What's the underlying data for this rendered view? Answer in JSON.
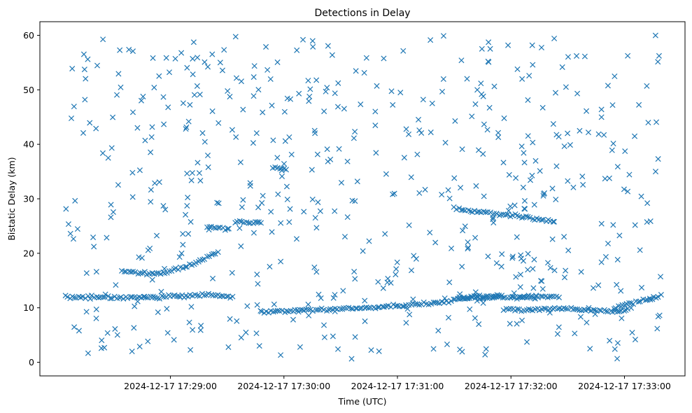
{
  "chart_data": {
    "type": "scatter",
    "title": "Detections in Delay",
    "xlabel": "Time (UTC)",
    "ylabel": "Bistatic Delay (km)",
    "xlim": [
      "2024-12-17 17:27:51",
      "2024-12-17 17:33:32"
    ],
    "ylim": [
      -2.5,
      62.5
    ],
    "x_ticks": [
      "2024-12-17 17:29:00",
      "2024-12-17 17:30:00",
      "2024-12-17 17:31:00",
      "2024-12-17 17:32:00",
      "2024-12-17 17:33:00"
    ],
    "y_ticks": [
      0,
      10,
      20,
      30,
      40,
      50,
      60
    ],
    "marker": "x",
    "color": "#1f77b4",
    "grid": false,
    "legend": "none",
    "start_time": "2024-12-17 17:28:04",
    "end_time": "2024-12-17 17:33:20",
    "tracks": [
      {
        "segments": [
          [
            0,
            12.0
          ],
          [
            30,
            11.8
          ],
          [
            55,
            12.1
          ],
          [
            78,
            12.4
          ],
          [
            90,
            12.0
          ]
        ]
      },
      {
        "segments": [
          [
            30,
            17.0
          ],
          [
            40,
            16.4
          ],
          [
            47,
            16.3
          ]
        ]
      },
      {
        "segments": [
          [
            47,
            16.2
          ],
          [
            65,
            17.6
          ],
          [
            75,
            19.2
          ],
          [
            82,
            20.3
          ]
        ]
      },
      {
        "segments": [
          [
            75,
            24.8
          ],
          [
            88,
            24.5
          ]
        ]
      },
      {
        "segments": [
          [
            90,
            25.8
          ],
          [
            105,
            25.5
          ]
        ]
      },
      {
        "segments": [
          [
            110,
            35.8
          ],
          [
            118,
            35.2
          ]
        ]
      },
      {
        "segments": [
          [
            103,
            9.2
          ],
          [
            125,
            9.5
          ],
          [
            160,
            10.0
          ],
          [
            175,
            10.3
          ],
          [
            195,
            10.8
          ],
          [
            215,
            12.0
          ],
          [
            232,
            12.1
          ]
        ]
      },
      {
        "segments": [
          [
            208,
            11.8
          ],
          [
            230,
            11.9
          ],
          [
            262,
            12.0
          ]
        ]
      },
      {
        "segments": [
          [
            207,
            28.2
          ],
          [
            220,
            27.6
          ],
          [
            240,
            26.8
          ],
          [
            260,
            25.8
          ]
        ]
      },
      {
        "segments": [
          [
            232,
            9.6
          ],
          [
            265,
            9.8
          ],
          [
            290,
            9.3
          ],
          [
            300,
            9.6
          ]
        ]
      },
      {
        "segments": [
          [
            240,
            12.0
          ],
          [
            250,
            12.1
          ]
        ]
      },
      {
        "segments": [
          [
            290,
            10.0
          ],
          [
            316,
            12.2
          ]
        ]
      }
    ],
    "track_points": 440,
    "scatter_points": 560,
    "seed": 20241217
  }
}
